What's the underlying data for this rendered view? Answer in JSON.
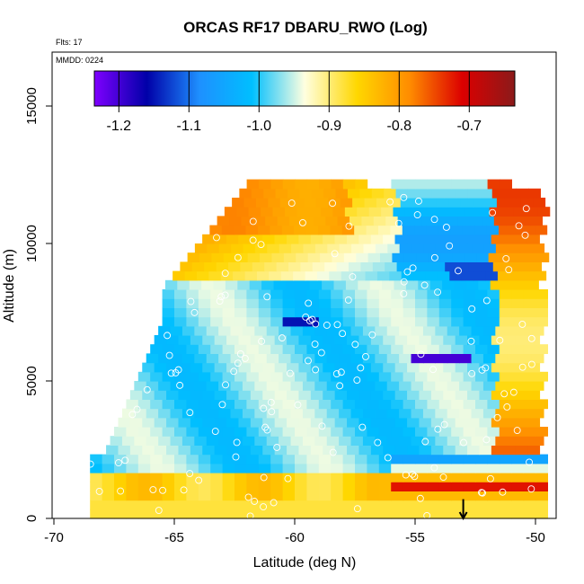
{
  "chart_data": {
    "type": "heatmap",
    "title": "ORCAS RF17 DBARU_RWO (Log)",
    "xlabel": "Latitude (deg N)",
    "ylabel": "Altitude (m)",
    "xlim": [
      -70,
      -49
    ],
    "ylim": [
      0,
      16500
    ],
    "x_ticks": [
      -70,
      -65,
      -60,
      -55,
      -50
    ],
    "y_ticks": [
      0,
      5000,
      10000,
      15000
    ],
    "annotations": {
      "flights": "Flts: 17",
      "date": "MMDD: 0224"
    },
    "colorbar": {
      "min": -1.235,
      "max": -0.635,
      "ticks": [
        -1.2,
        -1.1,
        -1.0,
        -0.9,
        -0.8,
        -0.7
      ],
      "colors": [
        "#7f00ff",
        "#0000a8",
        "#1e90ff",
        "#00bfff",
        "#ffffe0",
        "#ffd700",
        "#ff8c00",
        "#dc0000",
        "#8b1a1a"
      ]
    },
    "arrow": {
      "latitude": -53,
      "altitude_top": 700,
      "altitude_bottom": 0
    }
  },
  "colors": {
    "frame": "#000000",
    "marker": "#ffffff"
  }
}
